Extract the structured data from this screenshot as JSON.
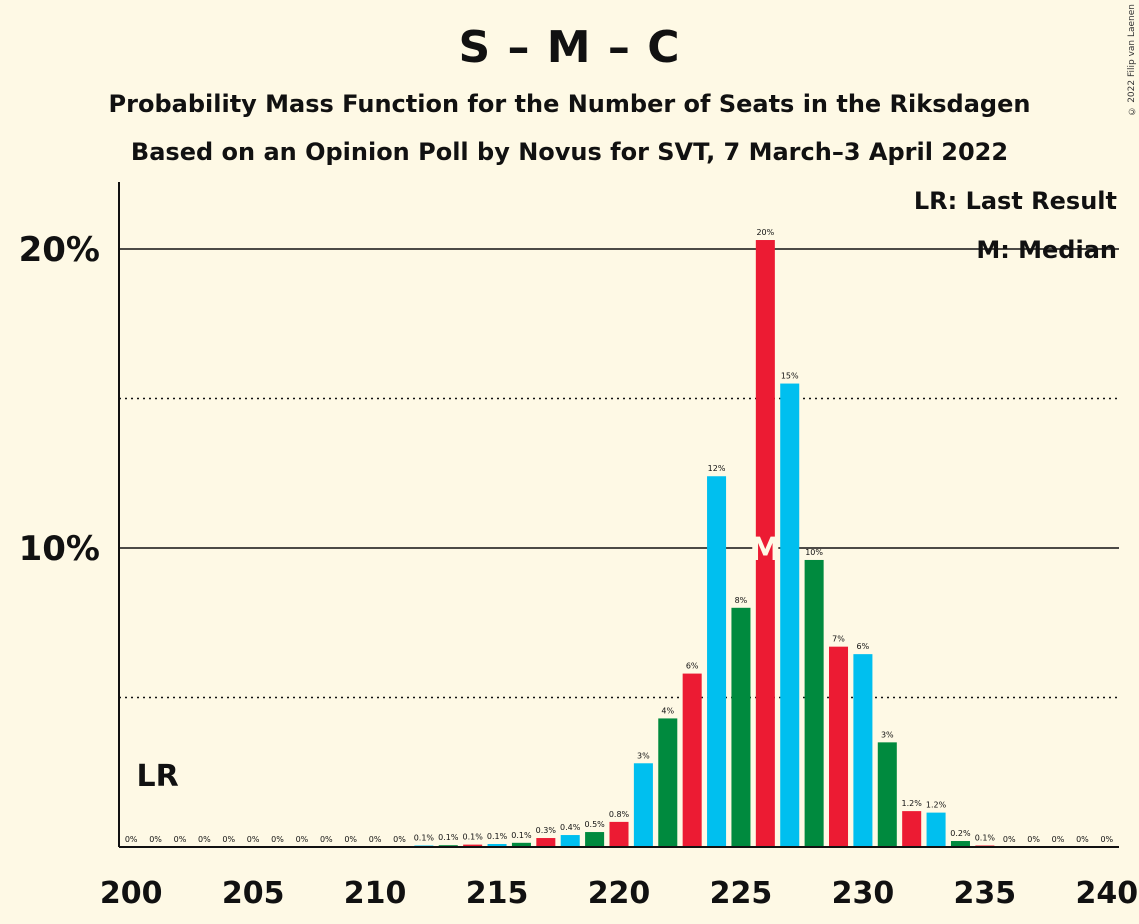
{
  "header": {
    "title": "S – M – C",
    "subtitle1": "Probability Mass Function for the Number of Seats in the Riksdagen",
    "subtitle2": "Based on an Opinion Poll by Novus for SVT, 7 March–3 April 2022",
    "copyright": "© 2022 Filip van Laenen"
  },
  "legend": {
    "lr": "LR: Last Result",
    "median": "M: Median"
  },
  "colors": {
    "background": "#FEF9E5",
    "blue": "#00BFEF",
    "green": "#008A3E",
    "red": "#EC1B33"
  },
  "chart_data": {
    "type": "bar",
    "x": [
      200,
      201,
      202,
      203,
      204,
      205,
      206,
      207,
      208,
      209,
      210,
      211,
      212,
      213,
      214,
      215,
      216,
      217,
      218,
      219,
      220,
      221,
      222,
      223,
      224,
      225,
      226,
      227,
      228,
      229,
      230,
      231,
      232,
      233,
      234,
      235,
      236,
      237,
      238,
      239,
      240
    ],
    "values": [
      0,
      0,
      0,
      0,
      0,
      0,
      0,
      0,
      0,
      0,
      0,
      0,
      0.05,
      0.06,
      0.08,
      0.1,
      0.14,
      0.3,
      0.4,
      0.5,
      0.84,
      2.8,
      4.3,
      5.8,
      12.4,
      8.0,
      20.3,
      15.5,
      9.6,
      6.7,
      6.45,
      3.5,
      1.2,
      1.15,
      0.2,
      0.05,
      0,
      0,
      0,
      0,
      0
    ],
    "labels": [
      "0%",
      "0%",
      "0%",
      "0%",
      "0%",
      "0%",
      "0%",
      "0%",
      "0%",
      "0%",
      "0%",
      "0%",
      "0.1%",
      "0.1%",
      "0.1%",
      "0.1%",
      "0.1%",
      "0.3%",
      "0.4%",
      "0.5%",
      "0.8%",
      "3%",
      "4%",
      "6%",
      "12%",
      "8%",
      "20%",
      "15%",
      "10%",
      "7%",
      "6%",
      "3%",
      "1.2%",
      "1.2%",
      "0.2%",
      "0.1%",
      "0%",
      "0%",
      "0%",
      "0%",
      "0%"
    ],
    "bar_colors": [
      "blue",
      "green",
      "red"
    ],
    "xticks": [
      "200",
      "205",
      "210",
      "215",
      "220",
      "225",
      "230",
      "235",
      "240"
    ],
    "yticks": [
      {
        "value": 10,
        "label": "10%"
      },
      {
        "value": 20,
        "label": "20%"
      }
    ],
    "minor_gridlines": [
      5,
      15
    ],
    "ylim": [
      0,
      22
    ],
    "xlim": [
      200,
      240
    ],
    "last_result": {
      "seat": 201,
      "label": "LR"
    },
    "median": {
      "seat": 226,
      "label": "M"
    }
  }
}
